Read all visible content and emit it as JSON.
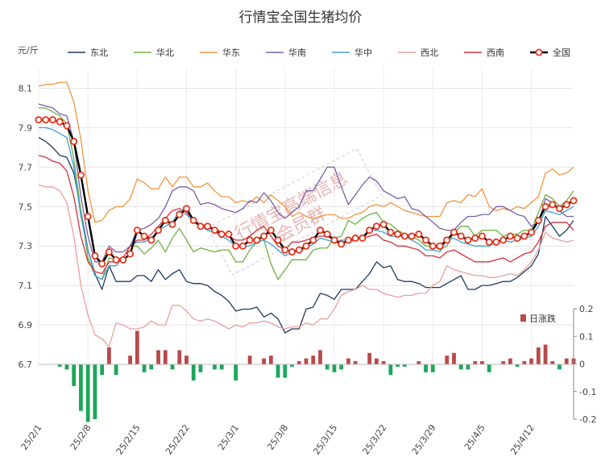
{
  "chart_data": {
    "type": "line",
    "title": "行情宝全国生猪均价",
    "ylabel": "元/斤",
    "ylim": [
      6.7,
      8.2
    ],
    "yticks": [
      6.7,
      6.9,
      7.1,
      7.3,
      7.5,
      7.7,
      7.9,
      8.1
    ],
    "y2lim": [
      -0.2,
      0.2
    ],
    "y2ticks": [
      -0.2,
      -0.1,
      0,
      0.1,
      0.2
    ],
    "xticks": [
      "25/2/1",
      "25/2/8",
      "25/2/15",
      "25/2/22",
      "25/3/1",
      "25/3/8",
      "25/3/15",
      "25/3/22",
      "25/3/29",
      "25/4/5",
      "25/4/12"
    ],
    "grid": true,
    "legend_position": "top",
    "watermark": "行情宝高端信息会员群",
    "x": [
      "25/2/1",
      "25/2/2",
      "25/2/3",
      "25/2/4",
      "25/2/5",
      "25/2/6",
      "25/2/7",
      "25/2/8",
      "25/2/9",
      "25/2/10",
      "25/2/11",
      "25/2/12",
      "25/2/13",
      "25/2/14",
      "25/2/15",
      "25/2/16",
      "25/2/17",
      "25/2/18",
      "25/2/19",
      "25/2/20",
      "25/2/21",
      "25/2/22",
      "25/2/23",
      "25/2/24",
      "25/2/25",
      "25/2/26",
      "25/2/27",
      "25/2/28",
      "25/3/1",
      "25/3/2",
      "25/3/3",
      "25/3/4",
      "25/3/5",
      "25/3/6",
      "25/3/7",
      "25/3/8",
      "25/3/9",
      "25/3/10",
      "25/3/11",
      "25/3/12",
      "25/3/13",
      "25/3/14",
      "25/3/15",
      "25/3/16",
      "25/3/17",
      "25/3/18",
      "25/3/19",
      "25/3/20",
      "25/3/21",
      "25/3/22",
      "25/3/23",
      "25/3/24",
      "25/3/25",
      "25/3/26",
      "25/3/27",
      "25/3/28",
      "25/3/29",
      "25/3/30",
      "25/3/31",
      "25/4/1",
      "25/4/2",
      "25/4/3",
      "25/4/4",
      "25/4/5",
      "25/4/6",
      "25/4/7",
      "25/4/8",
      "25/4/9",
      "25/4/10",
      "25/4/11",
      "25/4/12",
      "25/4/13",
      "25/4/14",
      "25/4/15",
      "25/4/16",
      "25/4/17",
      "25/4/18"
    ],
    "series": [
      {
        "name": "东北",
        "color": "#1f3864",
        "values": [
          7.85,
          7.83,
          7.8,
          7.76,
          7.75,
          7.67,
          7.48,
          7.28,
          7.16,
          7.08,
          7.2,
          7.12,
          7.12,
          7.12,
          7.15,
          7.15,
          7.12,
          7.18,
          7.13,
          7.16,
          7.18,
          7.12,
          7.11,
          7.11,
          7.1,
          7.07,
          7.05,
          7.02,
          6.97,
          6.98,
          6.98,
          6.99,
          6.94,
          6.96,
          6.93,
          6.86,
          6.88,
          6.88,
          6.98,
          6.99,
          7.06,
          7.05,
          7.03,
          7.08,
          7.08,
          7.08,
          7.12,
          7.16,
          7.22,
          7.19,
          7.2,
          7.13,
          7.12,
          7.12,
          7.11,
          7.09,
          7.09,
          7.09,
          7.11,
          7.13,
          7.15,
          7.08,
          7.08,
          7.1,
          7.1,
          7.11,
          7.12,
          7.12,
          7.14,
          7.17,
          7.2,
          7.26,
          7.45,
          7.4,
          7.35,
          7.38,
          7.43
        ]
      },
      {
        "name": "华北",
        "color": "#70b043",
        "values": [
          8.0,
          8.0,
          7.98,
          7.96,
          7.92,
          7.74,
          7.48,
          7.24,
          7.15,
          7.13,
          7.24,
          7.23,
          7.24,
          7.3,
          7.3,
          7.26,
          7.29,
          7.33,
          7.27,
          7.34,
          7.39,
          7.33,
          7.27,
          7.29,
          7.28,
          7.27,
          7.28,
          7.28,
          7.22,
          7.22,
          7.28,
          7.32,
          7.33,
          7.21,
          7.13,
          7.18,
          7.23,
          7.23,
          7.23,
          7.28,
          7.29,
          7.29,
          7.34,
          7.35,
          7.43,
          7.41,
          7.44,
          7.46,
          7.47,
          7.42,
          7.41,
          7.38,
          7.36,
          7.35,
          7.33,
          7.3,
          7.3,
          7.28,
          7.3,
          7.37,
          7.4,
          7.4,
          7.35,
          7.38,
          7.38,
          7.38,
          7.35,
          7.36,
          7.36,
          7.38,
          7.38,
          7.47,
          7.56,
          7.54,
          7.5,
          7.53,
          7.58
        ]
      },
      {
        "name": "华东",
        "color": "#f0953f",
        "values": [
          8.11,
          8.12,
          8.12,
          8.13,
          8.13,
          8.03,
          7.84,
          7.58,
          7.42,
          7.43,
          7.48,
          7.5,
          7.5,
          7.54,
          7.64,
          7.62,
          7.59,
          7.59,
          7.65,
          7.6,
          7.65,
          7.65,
          7.6,
          7.6,
          7.62,
          7.58,
          7.55,
          7.55,
          7.52,
          7.53,
          7.52,
          7.55,
          7.52,
          7.56,
          7.53,
          7.5,
          7.45,
          7.47,
          7.45,
          7.44,
          7.45,
          7.46,
          7.46,
          7.44,
          7.44,
          7.46,
          7.47,
          7.5,
          7.51,
          7.5,
          7.52,
          7.5,
          7.48,
          7.47,
          7.46,
          7.45,
          7.45,
          7.45,
          7.52,
          7.53,
          7.52,
          7.56,
          7.55,
          7.59,
          7.5,
          7.48,
          7.49,
          7.48,
          7.5,
          7.49,
          7.52,
          7.55,
          7.67,
          7.69,
          7.66,
          7.67,
          7.7
        ]
      },
      {
        "name": "华南",
        "color": "#7b5ea7",
        "values": [
          8.02,
          8.01,
          8.0,
          7.97,
          7.96,
          7.83,
          7.55,
          7.35,
          7.22,
          7.22,
          7.3,
          7.27,
          7.27,
          7.3,
          7.38,
          7.39,
          7.41,
          7.44,
          7.5,
          7.58,
          7.6,
          7.6,
          7.58,
          7.51,
          7.52,
          7.51,
          7.49,
          7.48,
          7.47,
          7.49,
          7.53,
          7.52,
          7.57,
          7.53,
          7.47,
          7.44,
          7.47,
          7.5,
          7.58,
          7.58,
          7.64,
          7.7,
          7.7,
          7.6,
          7.51,
          7.56,
          7.61,
          7.65,
          7.63,
          7.58,
          7.56,
          7.54,
          7.55,
          7.49,
          7.48,
          7.45,
          7.42,
          7.39,
          7.38,
          7.38,
          7.42,
          7.45,
          7.45,
          7.46,
          7.46,
          7.5,
          7.5,
          7.48,
          7.46,
          7.45,
          7.4,
          7.42,
          7.54,
          7.52,
          7.48,
          7.45,
          7.45
        ]
      },
      {
        "name": "华中",
        "color": "#3fa0d2",
        "values": [
          7.9,
          7.9,
          7.89,
          7.87,
          7.85,
          7.7,
          7.45,
          7.28,
          7.15,
          7.13,
          7.2,
          7.2,
          7.24,
          7.3,
          7.32,
          7.32,
          7.34,
          7.38,
          7.4,
          7.42,
          7.48,
          7.46,
          7.42,
          7.4,
          7.38,
          7.37,
          7.35,
          7.33,
          7.3,
          7.3,
          7.3,
          7.32,
          7.33,
          7.31,
          7.28,
          7.25,
          7.27,
          7.27,
          7.29,
          7.31,
          7.34,
          7.33,
          7.32,
          7.33,
          7.33,
          7.34,
          7.35,
          7.38,
          7.38,
          7.37,
          7.35,
          7.35,
          7.35,
          7.33,
          7.31,
          7.28,
          7.28,
          7.27,
          7.33,
          7.34,
          7.32,
          7.31,
          7.3,
          7.3,
          7.3,
          7.32,
          7.33,
          7.32,
          7.33,
          7.34,
          7.35,
          7.4,
          7.48,
          7.47,
          7.46,
          7.48,
          7.5
        ]
      },
      {
        "name": "西北",
        "color": "#e8a09a",
        "values": [
          7.61,
          7.6,
          7.6,
          7.58,
          7.52,
          7.35,
          7.1,
          6.95,
          6.85,
          6.83,
          6.79,
          6.91,
          6.9,
          6.88,
          6.88,
          6.89,
          6.92,
          6.9,
          6.9,
          7.0,
          7.0,
          6.97,
          6.93,
          6.92,
          6.93,
          6.92,
          6.9,
          6.88,
          6.9,
          6.89,
          6.91,
          6.91,
          6.92,
          6.91,
          6.89,
          6.88,
          6.89,
          6.89,
          6.91,
          6.9,
          6.93,
          6.93,
          6.98,
          7.05,
          7.07,
          7.08,
          7.1,
          7.08,
          7.08,
          7.06,
          7.05,
          7.04,
          7.05,
          7.05,
          7.06,
          7.06,
          7.1,
          7.12,
          7.2,
          7.18,
          7.17,
          7.16,
          7.15,
          7.15,
          7.14,
          7.14,
          7.15,
          7.16,
          7.15,
          7.18,
          7.22,
          7.28,
          7.37,
          7.34,
          7.33,
          7.32,
          7.33
        ]
      },
      {
        "name": "西南",
        "color": "#d62f3c",
        "values": [
          7.76,
          7.75,
          7.73,
          7.72,
          7.68,
          7.55,
          7.35,
          7.22,
          7.17,
          7.16,
          7.22,
          7.22,
          7.24,
          7.3,
          7.33,
          7.33,
          7.36,
          7.4,
          7.44,
          7.48,
          7.49,
          7.47,
          7.43,
          7.41,
          7.4,
          7.39,
          7.37,
          7.35,
          7.33,
          7.33,
          7.35,
          7.38,
          7.4,
          7.35,
          7.3,
          7.28,
          7.32,
          7.32,
          7.33,
          7.34,
          7.35,
          7.35,
          7.33,
          7.32,
          7.32,
          7.33,
          7.34,
          7.35,
          7.36,
          7.33,
          7.32,
          7.3,
          7.3,
          7.29,
          7.28,
          7.25,
          7.25,
          7.24,
          7.27,
          7.28,
          7.26,
          7.24,
          7.22,
          7.22,
          7.22,
          7.23,
          7.24,
          7.22,
          7.24,
          7.26,
          7.27,
          7.32,
          7.4,
          7.42,
          7.42,
          7.42,
          7.38
        ]
      },
      {
        "name": "全国",
        "color": "#000000",
        "marker": true,
        "values": [
          7.94,
          7.94,
          7.94,
          7.93,
          7.91,
          7.83,
          7.66,
          7.45,
          7.25,
          7.21,
          7.27,
          7.23,
          7.23,
          7.26,
          7.38,
          7.35,
          7.33,
          7.38,
          7.43,
          7.41,
          7.46,
          7.49,
          7.43,
          7.4,
          7.4,
          7.38,
          7.36,
          7.36,
          7.3,
          7.3,
          7.33,
          7.33,
          7.35,
          7.38,
          7.33,
          7.28,
          7.27,
          7.28,
          7.3,
          7.33,
          7.38,
          7.36,
          7.33,
          7.31,
          7.33,
          7.34,
          7.34,
          7.38,
          7.4,
          7.41,
          7.37,
          7.36,
          7.35,
          7.35,
          7.36,
          7.33,
          7.3,
          7.3,
          7.33,
          7.37,
          7.35,
          7.33,
          7.34,
          7.35,
          7.32,
          7.32,
          7.33,
          7.35,
          7.34,
          7.35,
          7.37,
          7.43,
          7.5,
          7.51,
          7.49,
          7.51,
          7.53
        ]
      },
      {
        "name": "日涨跌",
        "axis": "right",
        "color_up": "#b84a4a",
        "color_down": "#1ea65b",
        "values": [
          0,
          0,
          0,
          -0.01,
          -0.02,
          -0.08,
          -0.17,
          -0.21,
          -0.2,
          -0.04,
          0.06,
          -0.04,
          0,
          0.03,
          0.12,
          -0.03,
          -0.02,
          0.05,
          0.05,
          -0.02,
          0.05,
          0.03,
          -0.06,
          -0.03,
          0,
          -0.02,
          -0.02,
          0,
          -0.06,
          0,
          0.03,
          0,
          0.02,
          0.03,
          -0.05,
          -0.05,
          -0.01,
          0.01,
          0.02,
          0.03,
          0.05,
          -0.02,
          -0.03,
          -0.02,
          0.02,
          0.01,
          0,
          0.04,
          0.02,
          0.01,
          -0.04,
          -0.01,
          -0.01,
          0,
          0.01,
          -0.03,
          -0.03,
          0,
          0.03,
          0.04,
          -0.02,
          -0.02,
          0.01,
          0.01,
          -0.03,
          0,
          0.01,
          0.02,
          -0.01,
          0.01,
          0.02,
          0.06,
          0.07,
          0.01,
          -0.02,
          0.02,
          0.02
        ]
      }
    ]
  }
}
